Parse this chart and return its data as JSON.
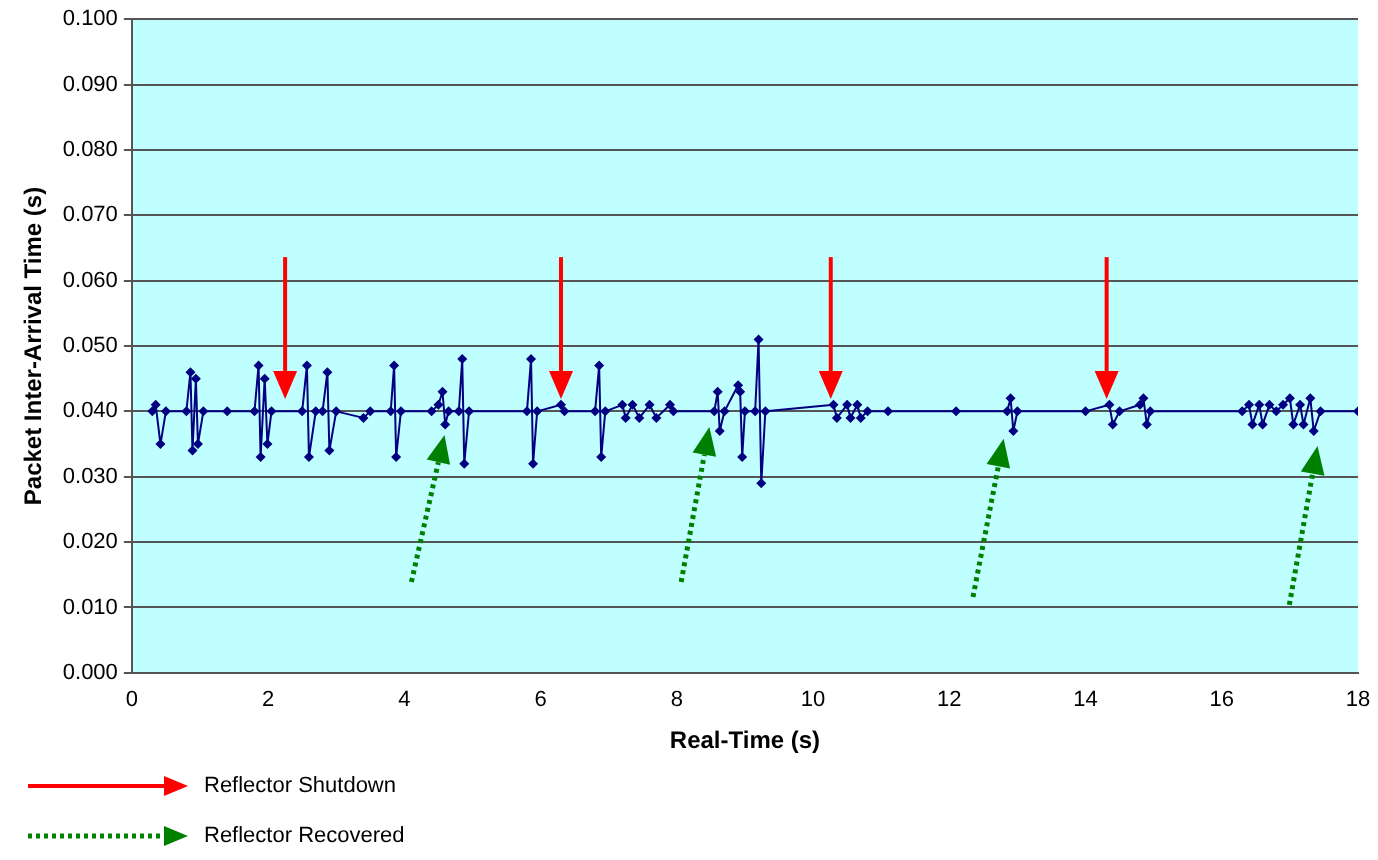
{
  "chart_data": {
    "type": "line",
    "xlabel": "Real-Time (s)",
    "ylabel": "Packet Inter-Arrival Time (s)",
    "xlim": [
      0,
      18
    ],
    "xticks": [
      0,
      2,
      4,
      6,
      8,
      10,
      12,
      14,
      16,
      18
    ],
    "ylim": [
      0,
      0.1
    ],
    "yticks": [
      {
        "value": 0,
        "label": "0.000"
      },
      {
        "value": 0.01,
        "label": "0.010"
      },
      {
        "value": 0.02,
        "label": "0.020"
      },
      {
        "value": 0.03,
        "label": "0.030"
      },
      {
        "value": 0.04,
        "label": "0.040"
      },
      {
        "value": 0.05,
        "label": "0.050"
      },
      {
        "value": 0.06,
        "label": "0.060"
      },
      {
        "value": 0.07,
        "label": "0.070"
      },
      {
        "value": 0.08,
        "label": "0.080"
      },
      {
        "value": 0.09,
        "label": "0.090"
      },
      {
        "value": 0.1,
        "label": "0.100"
      }
    ],
    "grid": "y",
    "legend": false,
    "marker": "diamond",
    "line_style": "solid",
    "annotations": [
      "Reflector Shutdown",
      "Reflector Recovered"
    ],
    "series": [
      {
        "color": "#000080",
        "x": [
          0.3,
          0.35,
          0.42,
          0.5,
          0.8,
          0.86,
          0.89,
          0.94,
          0.97,
          1.05,
          1.4,
          1.8,
          1.86,
          1.89,
          1.95,
          1.99,
          2.05,
          2.5,
          2.57,
          2.6,
          2.7,
          2.8,
          2.87,
          2.9,
          3.0,
          3.4,
          3.5,
          3.8,
          3.85,
          3.88,
          3.95,
          4.4,
          4.5,
          4.56,
          4.6,
          4.65,
          4.8,
          4.85,
          4.88,
          4.95,
          5.8,
          5.86,
          5.89,
          5.95,
          6.3,
          6.35,
          6.8,
          6.86,
          6.89,
          6.95,
          7.2,
          7.25,
          7.35,
          7.45,
          7.6,
          7.7,
          7.9,
          7.95,
          8.55,
          8.6,
          8.63,
          8.7,
          8.9,
          8.93,
          8.96,
          9.0,
          9.15,
          9.2,
          9.24,
          9.3,
          10.3,
          10.35,
          10.5,
          10.55,
          10.65,
          10.7,
          10.8,
          11.1,
          12.1,
          12.85,
          12.9,
          12.94,
          13.0,
          14.0,
          14.35,
          14.4,
          14.5,
          14.8,
          14.85,
          14.9,
          14.95,
          16.3,
          16.4,
          16.45,
          16.55,
          16.6,
          16.7,
          16.8,
          16.9,
          17.0,
          17.05,
          17.15,
          17.2,
          17.3,
          17.35,
          17.45,
          18.0
        ],
        "values": [
          0.04,
          0.041,
          0.035,
          0.04,
          0.04,
          0.046,
          0.034,
          0.045,
          0.035,
          0.04,
          0.04,
          0.04,
          0.047,
          0.033,
          0.045,
          0.035,
          0.04,
          0.04,
          0.047,
          0.033,
          0.04,
          0.04,
          0.046,
          0.034,
          0.04,
          0.039,
          0.04,
          0.04,
          0.047,
          0.033,
          0.04,
          0.04,
          0.041,
          0.043,
          0.038,
          0.04,
          0.04,
          0.048,
          0.032,
          0.04,
          0.04,
          0.048,
          0.032,
          0.04,
          0.041,
          0.04,
          0.04,
          0.047,
          0.033,
          0.04,
          0.041,
          0.039,
          0.041,
          0.039,
          0.041,
          0.039,
          0.041,
          0.04,
          0.04,
          0.043,
          0.037,
          0.04,
          0.044,
          0.043,
          0.033,
          0.04,
          0.04,
          0.051,
          0.029,
          0.04,
          0.041,
          0.039,
          0.041,
          0.039,
          0.041,
          0.039,
          0.04,
          0.04,
          0.04,
          0.04,
          0.042,
          0.037,
          0.04,
          0.04,
          0.041,
          0.038,
          0.04,
          0.041,
          0.042,
          0.038,
          0.04,
          0.04,
          0.041,
          0.038,
          0.041,
          0.038,
          0.041,
          0.04,
          0.041,
          0.042,
          0.038,
          0.041,
          0.038,
          0.042,
          0.037,
          0.04,
          0.04
        ]
      }
    ]
  }
}
